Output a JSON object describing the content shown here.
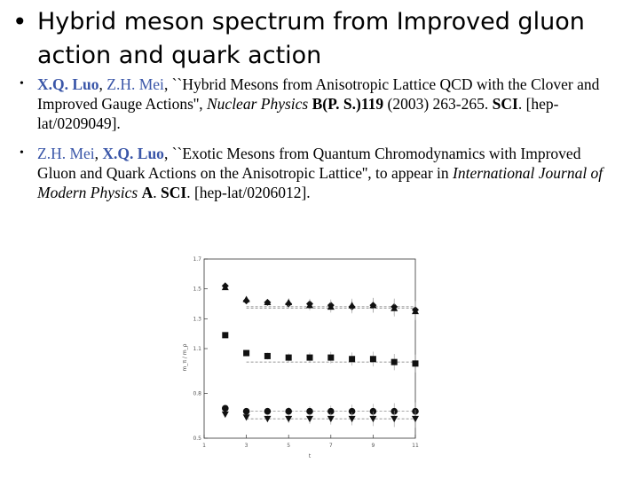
{
  "slide": {
    "title": "Hybrid meson spectrum from Improved gluon action and quark action",
    "references": [
      {
        "author1": "X.Q. Luo",
        "sep1": ", ",
        "author2": "Z.H. Mei",
        "sep2": ", ",
        "title": "``Hybrid Mesons from Anisotropic Lattice QCD with the Clover and Improved Gauge Actions'', ",
        "journal": "Nuclear Physics",
        "gap1": " ",
        "volume": "B(P. S.)119",
        "pages": " (2003) 263-265. ",
        "index": "SCI",
        "arxiv": ".  [hep-lat/0209049]."
      },
      {
        "author1": "Z.H. Mei",
        "sep1": ", ",
        "author2": "X.Q. Luo",
        "sep2": ", ",
        "title": "``Exotic Mesons from Quantum Chromodynamics with Improved Gluon and Quark Actions on the Anisotropic Lattice'', to appear in ",
        "journal": "International Journal of Modern Physics",
        "gap1": " ",
        "volume": "A",
        "pages": ". ",
        "index": "SCI",
        "arxiv": ". [hep-lat/0206012]."
      }
    ]
  },
  "chart_data": {
    "type": "scatter",
    "xlim": [
      1,
      11
    ],
    "ylim": [
      0.5,
      1.7
    ],
    "xticks": [
      "1",
      "3",
      "5",
      "7",
      "9",
      "11"
    ],
    "yticks": [
      "0.5",
      "0.8",
      "1.1",
      "1.3",
      "1.5",
      "1.7"
    ],
    "xlabel": "t",
    "ylabel": "m_π / m_ρ",
    "grid": false,
    "series": [
      {
        "marker": "diamond",
        "x": [
          2,
          3,
          4,
          5,
          6,
          7,
          8,
          9,
          10,
          11
        ],
        "y": [
          1.52,
          1.42,
          1.41,
          1.4,
          1.4,
          1.39,
          1.38,
          1.39,
          1.38,
          1.36
        ]
      },
      {
        "marker": "triangle-up",
        "x": [
          2,
          3,
          4,
          5,
          6,
          7,
          8,
          9,
          10,
          11
        ],
        "y": [
          1.51,
          1.43,
          1.41,
          1.41,
          1.39,
          1.38,
          1.39,
          1.39,
          1.37,
          1.35
        ]
      },
      {
        "marker": "square",
        "x": [
          2,
          3,
          4,
          5,
          6,
          7,
          8,
          9,
          10,
          11
        ],
        "y": [
          1.19,
          1.07,
          1.05,
          1.04,
          1.04,
          1.04,
          1.03,
          1.03,
          1.01,
          1.0
        ]
      },
      {
        "marker": "circle",
        "x": [
          2,
          3,
          4,
          5,
          6,
          7,
          8,
          9,
          10,
          11
        ],
        "y": [
          0.7,
          0.68,
          0.68,
          0.68,
          0.68,
          0.68,
          0.68,
          0.68,
          0.68,
          0.68
        ]
      },
      {
        "marker": "triangle-down",
        "x": [
          2,
          3,
          4,
          5,
          6,
          7,
          8,
          9,
          10,
          11
        ],
        "y": [
          0.66,
          0.64,
          0.63,
          0.63,
          0.63,
          0.63,
          0.63,
          0.63,
          0.63,
          0.63
        ]
      }
    ]
  }
}
